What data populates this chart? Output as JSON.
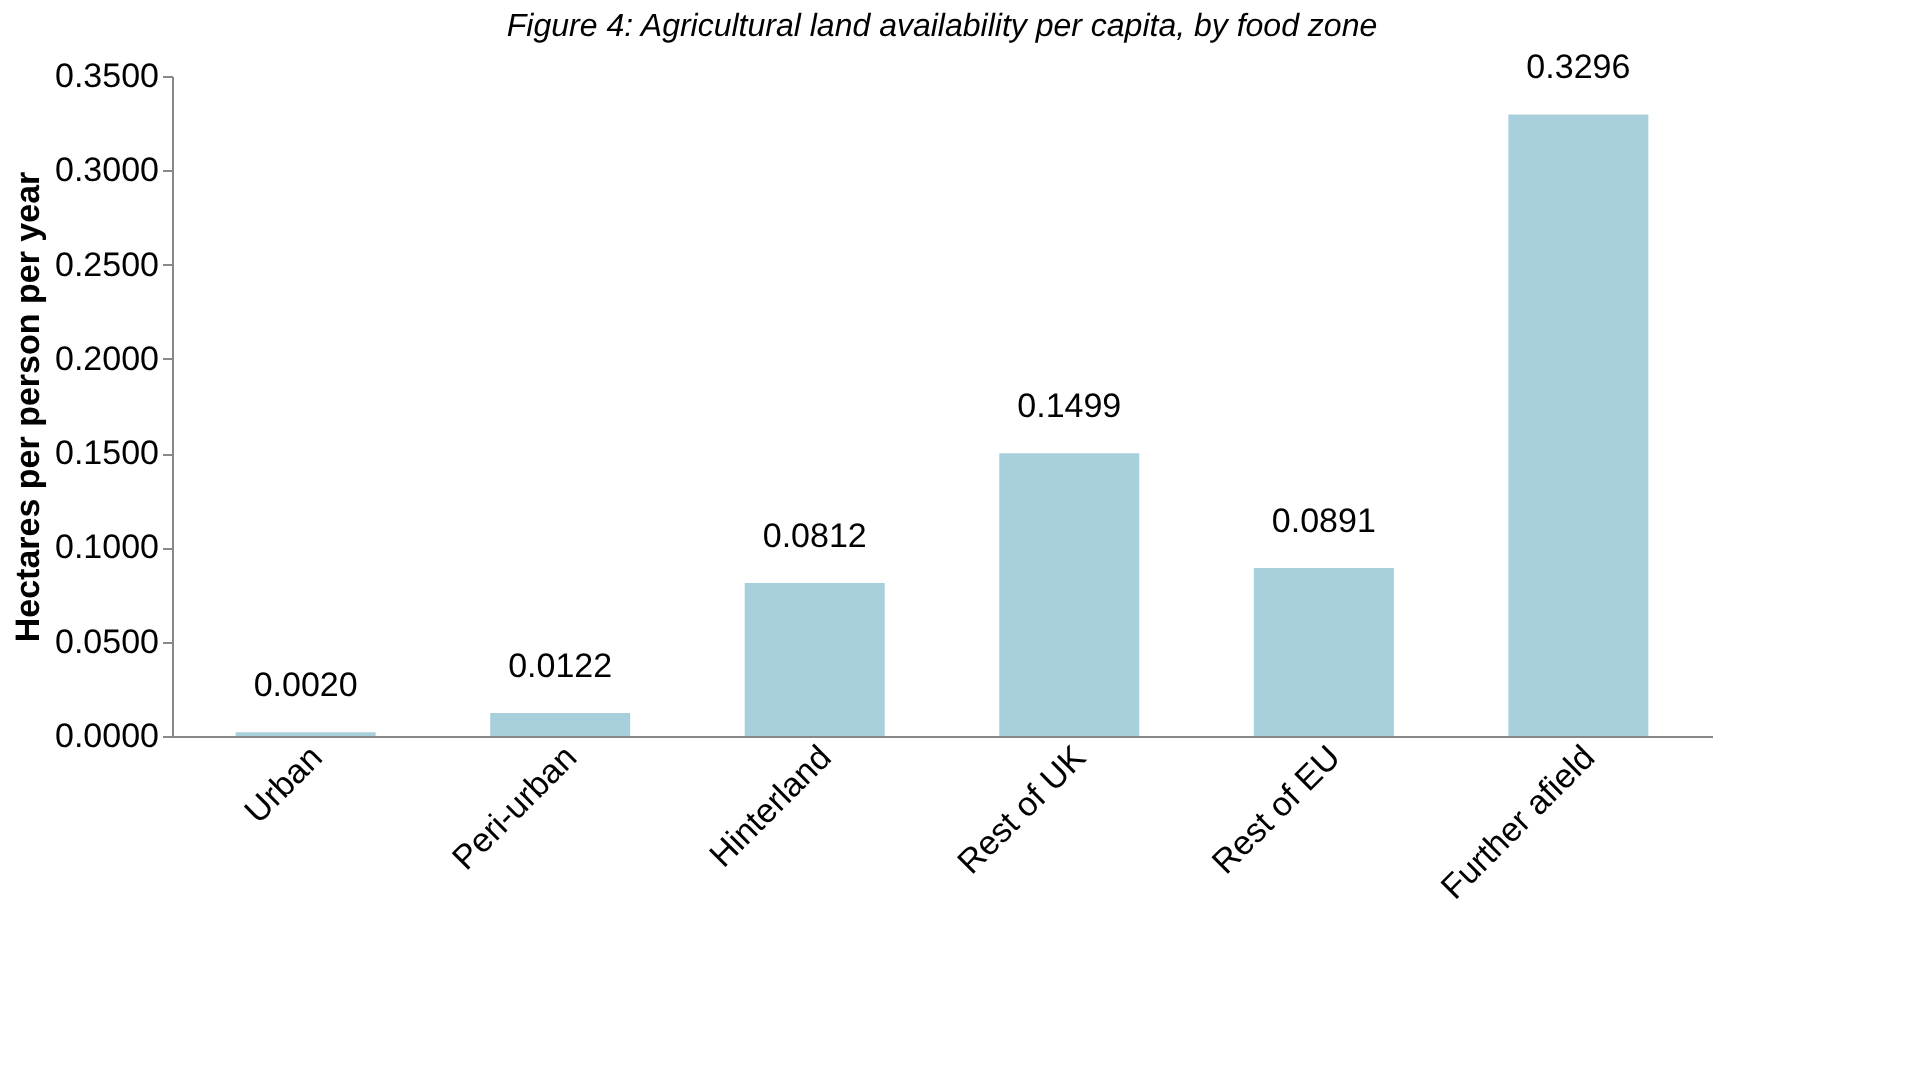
{
  "chart_data": {
    "type": "bar",
    "title": "Figure 4: Agricultural land availability per capita, by food zone",
    "ylabel": "Hectares per person per year",
    "categories": [
      "Urban",
      "Peri-urban",
      "Hinterland",
      "Rest of UK",
      "Rest of EU",
      "Further afield"
    ],
    "values": [
      0.002,
      0.0122,
      0.0812,
      0.1499,
      0.0891,
      0.3296
    ],
    "value_labels": [
      "0.0020",
      "0.0122",
      "0.0812",
      "0.1499",
      "0.0891",
      "0.3296"
    ],
    "color": "#a8cfdc",
    "ylim": [
      0,
      0.35
    ],
    "yticks": [
      {
        "value": 0,
        "label": "0.0000"
      },
      {
        "value": 0.05,
        "label": "0.0500"
      },
      {
        "value": 0.1,
        "label": "0.1000"
      },
      {
        "value": 0.15,
        "label": "0.1500"
      },
      {
        "value": 0.2,
        "label": "0.2000"
      },
      {
        "value": 0.25,
        "label": "0.2500"
      },
      {
        "value": 0.3,
        "label": "0.3000"
      },
      {
        "value": 0.35,
        "label": "0.3500"
      }
    ],
    "grid": false
  }
}
